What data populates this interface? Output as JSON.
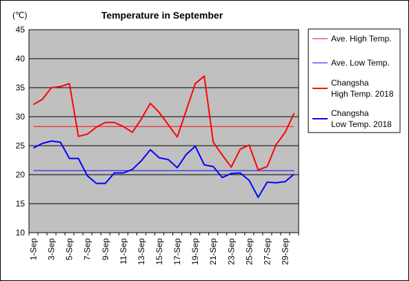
{
  "chart_data": {
    "type": "line",
    "title": "Temperature in September",
    "unit_label": "(℃)",
    "ylim": [
      10,
      45
    ],
    "y_ticks": [
      10,
      15,
      20,
      25,
      30,
      35,
      40,
      45
    ],
    "x": [
      1,
      2,
      3,
      4,
      5,
      6,
      7,
      8,
      9,
      10,
      11,
      12,
      13,
      14,
      15,
      16,
      17,
      18,
      19,
      20,
      21,
      22,
      23,
      24,
      25,
      26,
      27,
      28,
      29,
      30
    ],
    "x_tick_labels": [
      "1-Sep",
      "3-Sep",
      "5-Sep",
      "7-Sep",
      "9-Sep",
      "11-Sep",
      "13-Sep",
      "15-Sep",
      "17-Sep",
      "19-Sep",
      "21-Sep",
      "23-Sep",
      "25-Sep",
      "27-Sep",
      "29-Sep"
    ],
    "grid": true,
    "legend_position": "right",
    "series": [
      {
        "name": "Ave. High Temp.",
        "color": "#ff0000",
        "style": "thin",
        "values": [
          28.3,
          28.3,
          28.3,
          28.3,
          28.3,
          28.3,
          28.3,
          28.3,
          28.3,
          28.3,
          28.3,
          28.3,
          28.3,
          28.3,
          28.3,
          28.3,
          28.3,
          28.3,
          28.3,
          28.3,
          28.3,
          28.3,
          28.3,
          28.3,
          28.3,
          28.3,
          28.3,
          28.3,
          28.3,
          28.3
        ]
      },
      {
        "name": "Ave. Low Temp.",
        "color": "#0000ff",
        "style": "thin",
        "values": [
          20.7,
          20.7,
          20.7,
          20.7,
          20.7,
          20.7,
          20.7,
          20.7,
          20.7,
          20.7,
          20.7,
          20.7,
          20.7,
          20.7,
          20.7,
          20.7,
          20.7,
          20.7,
          20.7,
          20.7,
          20.7,
          20.7,
          20.7,
          20.7,
          20.7,
          20.7,
          20.7,
          20.7,
          20.7,
          20.7
        ]
      },
      {
        "name": "Changsha High Temp. 2018",
        "name_lines": [
          "Changsha",
          "High Temp. 2018"
        ],
        "color": "#ff0000",
        "style": "thick",
        "values": [
          32.1,
          33.0,
          35.0,
          35.2,
          35.7,
          26.6,
          27.0,
          28.2,
          29.0,
          29.0,
          28.3,
          27.3,
          29.6,
          32.3,
          30.7,
          28.6,
          26.5,
          31.1,
          35.7,
          37.0,
          25.6,
          23.4,
          21.3,
          24.4,
          25.1,
          20.8,
          21.4,
          25.2,
          27.3,
          30.6
        ]
      },
      {
        "name": "Changsha Low Temp. 2018",
        "name_lines": [
          "Changsha",
          "Low Temp. 2018"
        ],
        "color": "#0000ff",
        "style": "thick",
        "values": [
          24.6,
          25.4,
          25.8,
          25.6,
          22.8,
          22.8,
          19.8,
          18.5,
          18.5,
          20.3,
          20.3,
          20.9,
          22.4,
          24.3,
          22.9,
          22.6,
          21.2,
          23.5,
          24.9,
          21.7,
          21.4,
          19.5,
          20.2,
          20.3,
          19.0,
          16.1,
          18.7,
          18.6,
          18.8,
          20.1
        ]
      }
    ]
  }
}
